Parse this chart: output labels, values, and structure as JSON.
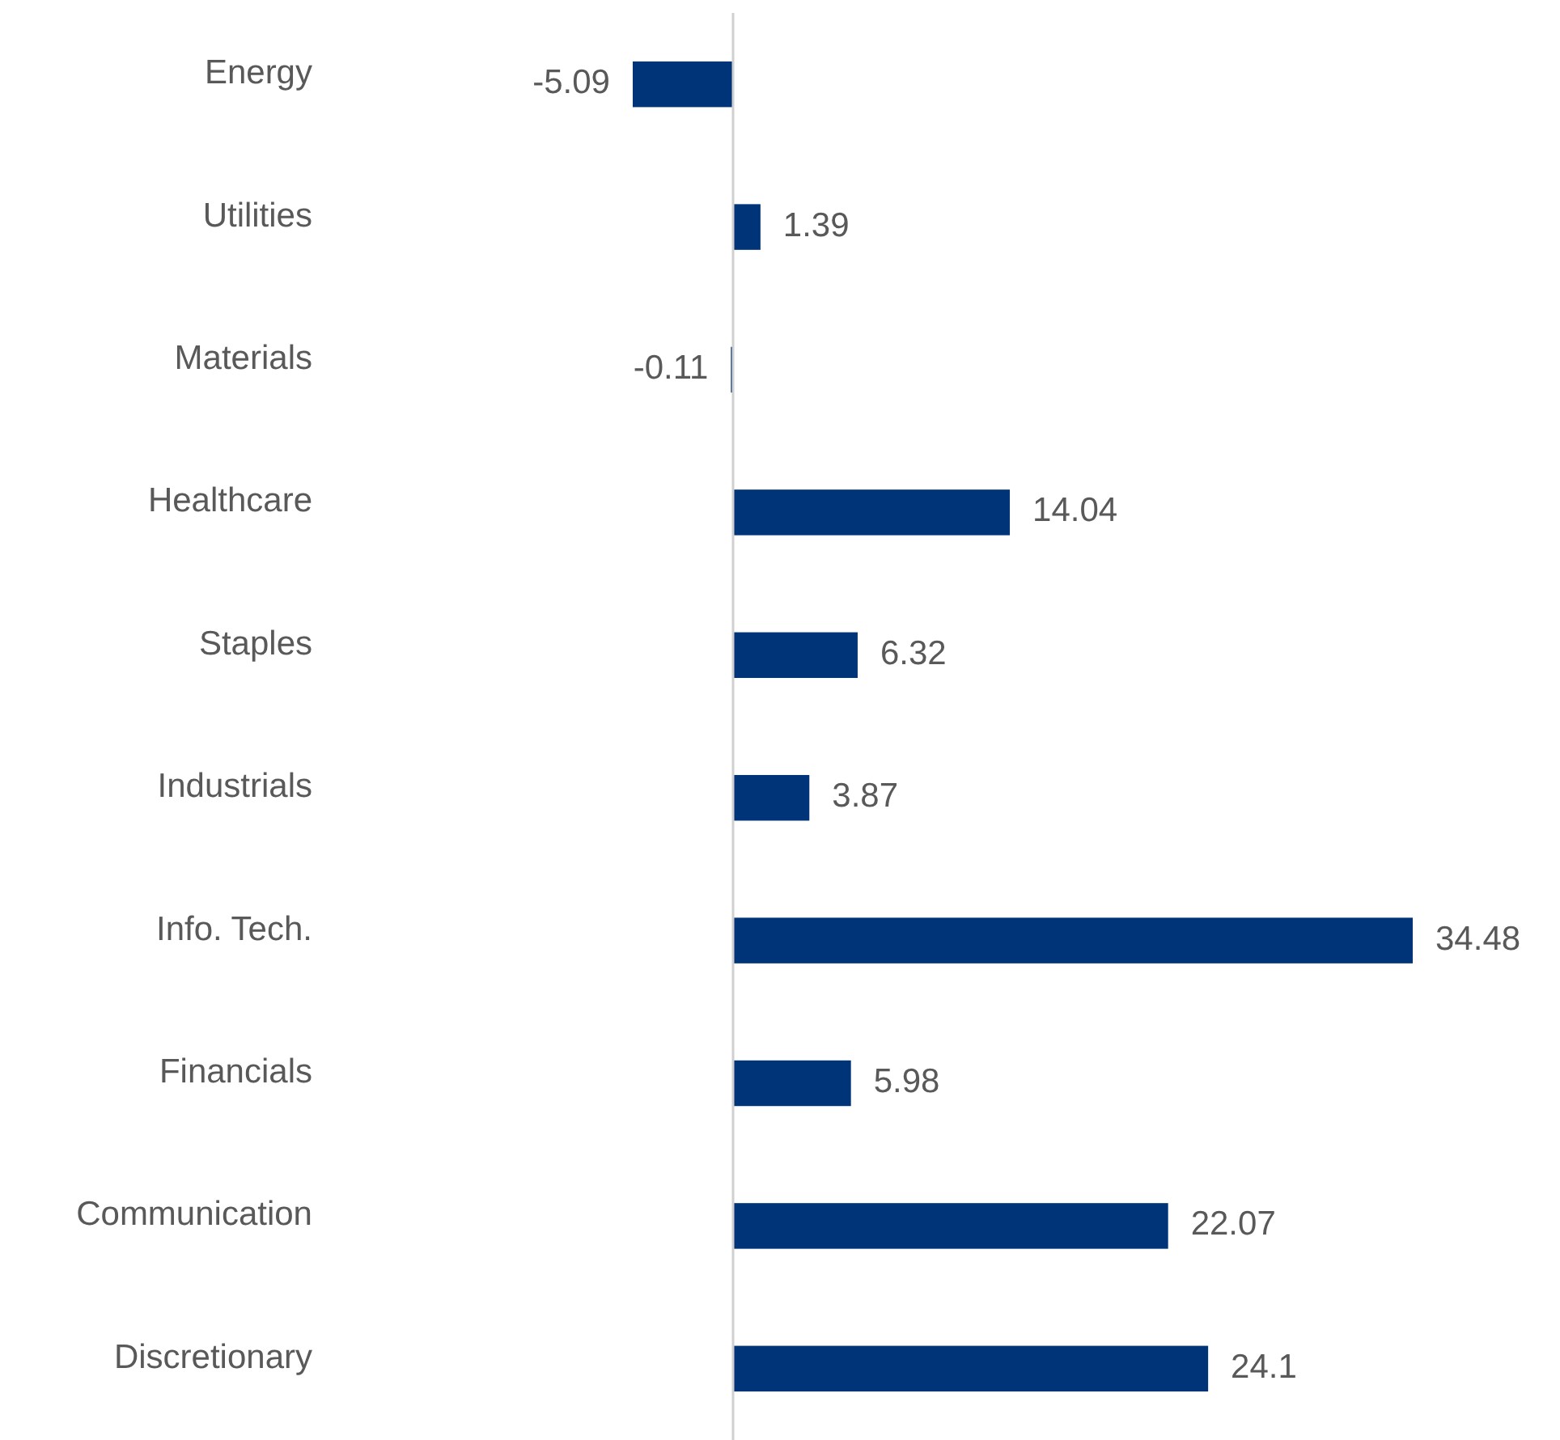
{
  "chart_data": {
    "type": "bar",
    "orientation": "horizontal",
    "categories": [
      "Energy",
      "Utilities",
      "Materials",
      "Healthcare",
      "Staples",
      "Industrials",
      "Info. Tech.",
      "Financials",
      "Communication",
      "Discretionary"
    ],
    "values": [
      -5.09,
      1.39,
      -0.11,
      14.04,
      6.32,
      3.87,
      34.48,
      5.98,
      22.07,
      24.1
    ],
    "color": "#003478",
    "data_labels": true,
    "tick_labels": "y"
  }
}
